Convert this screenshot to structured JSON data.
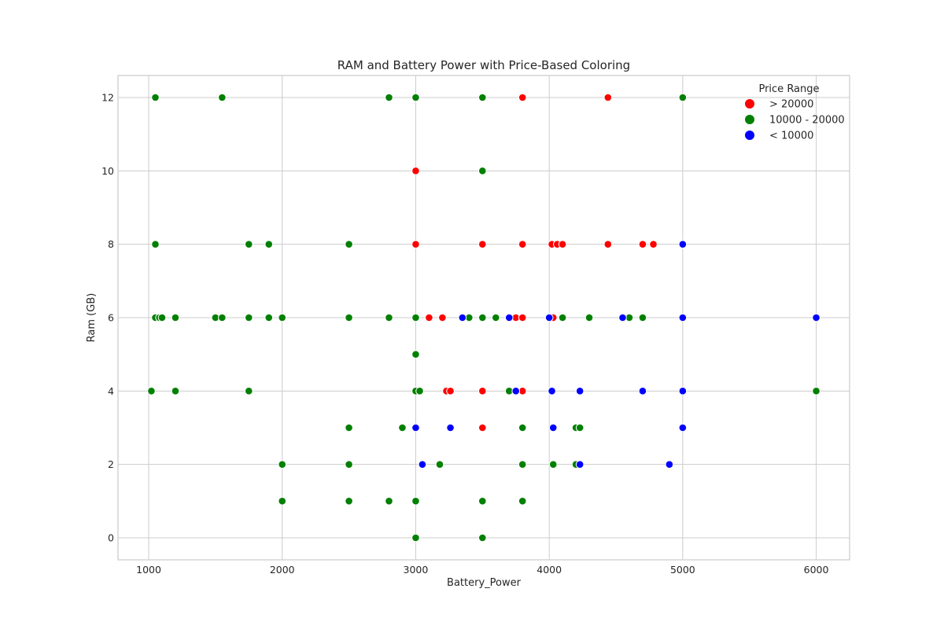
{
  "chart_data": {
    "type": "scatter",
    "title": "RAM and Battery Power with Price-Based Coloring",
    "xlabel": "Battery_Power",
    "ylabel": "Ram (GB)",
    "xlim": [
      770,
      6250
    ],
    "ylim": [
      -0.6,
      12.6
    ],
    "xticks": [
      1000,
      2000,
      3000,
      4000,
      5000,
      6000
    ],
    "yticks": [
      0,
      2,
      4,
      6,
      8,
      10,
      12
    ],
    "grid": true,
    "legend": {
      "title": "Price Range",
      "placement": "top-right",
      "entries": [
        {
          "label": "> 20000",
          "color": "#ff0000"
        },
        {
          "label": "10000 - 20000",
          "color": "#008000"
        },
        {
          "label": "< 10000",
          "color": "#0000ff"
        }
      ]
    },
    "series": [
      {
        "name": "> 20000",
        "color": "#ff0000",
        "points": [
          [
            3800,
            12
          ],
          [
            4440,
            12
          ],
          [
            3000,
            10
          ],
          [
            3000,
            8
          ],
          [
            3500,
            8
          ],
          [
            3800,
            8
          ],
          [
            4020,
            8
          ],
          [
            4060,
            8
          ],
          [
            4100,
            8
          ],
          [
            4440,
            8
          ],
          [
            4700,
            8
          ],
          [
            4780,
            8
          ],
          [
            3100,
            6
          ],
          [
            3200,
            6
          ],
          [
            3750,
            6
          ],
          [
            3800,
            6
          ],
          [
            4030,
            6
          ],
          [
            3230,
            4
          ],
          [
            3260,
            4
          ],
          [
            3500,
            4
          ],
          [
            3800,
            4
          ],
          [
            3500,
            3
          ]
        ]
      },
      {
        "name": "10000 - 20000",
        "color": "#008000",
        "points": [
          [
            1050,
            12
          ],
          [
            1550,
            12
          ],
          [
            2800,
            12
          ],
          [
            3000,
            12
          ],
          [
            3500,
            12
          ],
          [
            5000,
            12
          ],
          [
            3500,
            10
          ],
          [
            1050,
            8
          ],
          [
            1750,
            8
          ],
          [
            1900,
            8
          ],
          [
            2500,
            8
          ],
          [
            1050,
            6
          ],
          [
            1080,
            6
          ],
          [
            1100,
            6
          ],
          [
            1200,
            6
          ],
          [
            1500,
            6
          ],
          [
            1550,
            6
          ],
          [
            1750,
            6
          ],
          [
            1900,
            6
          ],
          [
            2000,
            6
          ],
          [
            2500,
            6
          ],
          [
            2800,
            6
          ],
          [
            3000,
            6
          ],
          [
            3400,
            6
          ],
          [
            3500,
            6
          ],
          [
            3600,
            6
          ],
          [
            4100,
            6
          ],
          [
            4300,
            6
          ],
          [
            4600,
            6
          ],
          [
            4700,
            6
          ],
          [
            3000,
            5
          ],
          [
            1020,
            4
          ],
          [
            1200,
            4
          ],
          [
            1750,
            4
          ],
          [
            3000,
            4
          ],
          [
            3030,
            4
          ],
          [
            3700,
            4
          ],
          [
            6000,
            4
          ],
          [
            2500,
            3
          ],
          [
            2900,
            3
          ],
          [
            3800,
            3
          ],
          [
            4200,
            3
          ],
          [
            4230,
            3
          ],
          [
            2000,
            2
          ],
          [
            2500,
            2
          ],
          [
            3180,
            2
          ],
          [
            3800,
            2
          ],
          [
            4030,
            2
          ],
          [
            4200,
            2
          ],
          [
            2000,
            1
          ],
          [
            2500,
            1
          ],
          [
            2800,
            1
          ],
          [
            3000,
            1
          ],
          [
            3500,
            1
          ],
          [
            3800,
            1
          ],
          [
            3000,
            0
          ],
          [
            3500,
            0
          ]
        ]
      },
      {
        "name": "< 10000",
        "color": "#0000ff",
        "points": [
          [
            5000,
            8
          ],
          [
            3350,
            6
          ],
          [
            3700,
            6
          ],
          [
            4000,
            6
          ],
          [
            4550,
            6
          ],
          [
            5000,
            6
          ],
          [
            6000,
            6
          ],
          [
            3750,
            4
          ],
          [
            4020,
            4
          ],
          [
            4230,
            4
          ],
          [
            4700,
            4
          ],
          [
            5000,
            4
          ],
          [
            3000,
            3
          ],
          [
            3260,
            3
          ],
          [
            4030,
            3
          ],
          [
            5000,
            3
          ],
          [
            3050,
            2
          ],
          [
            4230,
            2
          ],
          [
            4900,
            2
          ]
        ]
      }
    ]
  }
}
